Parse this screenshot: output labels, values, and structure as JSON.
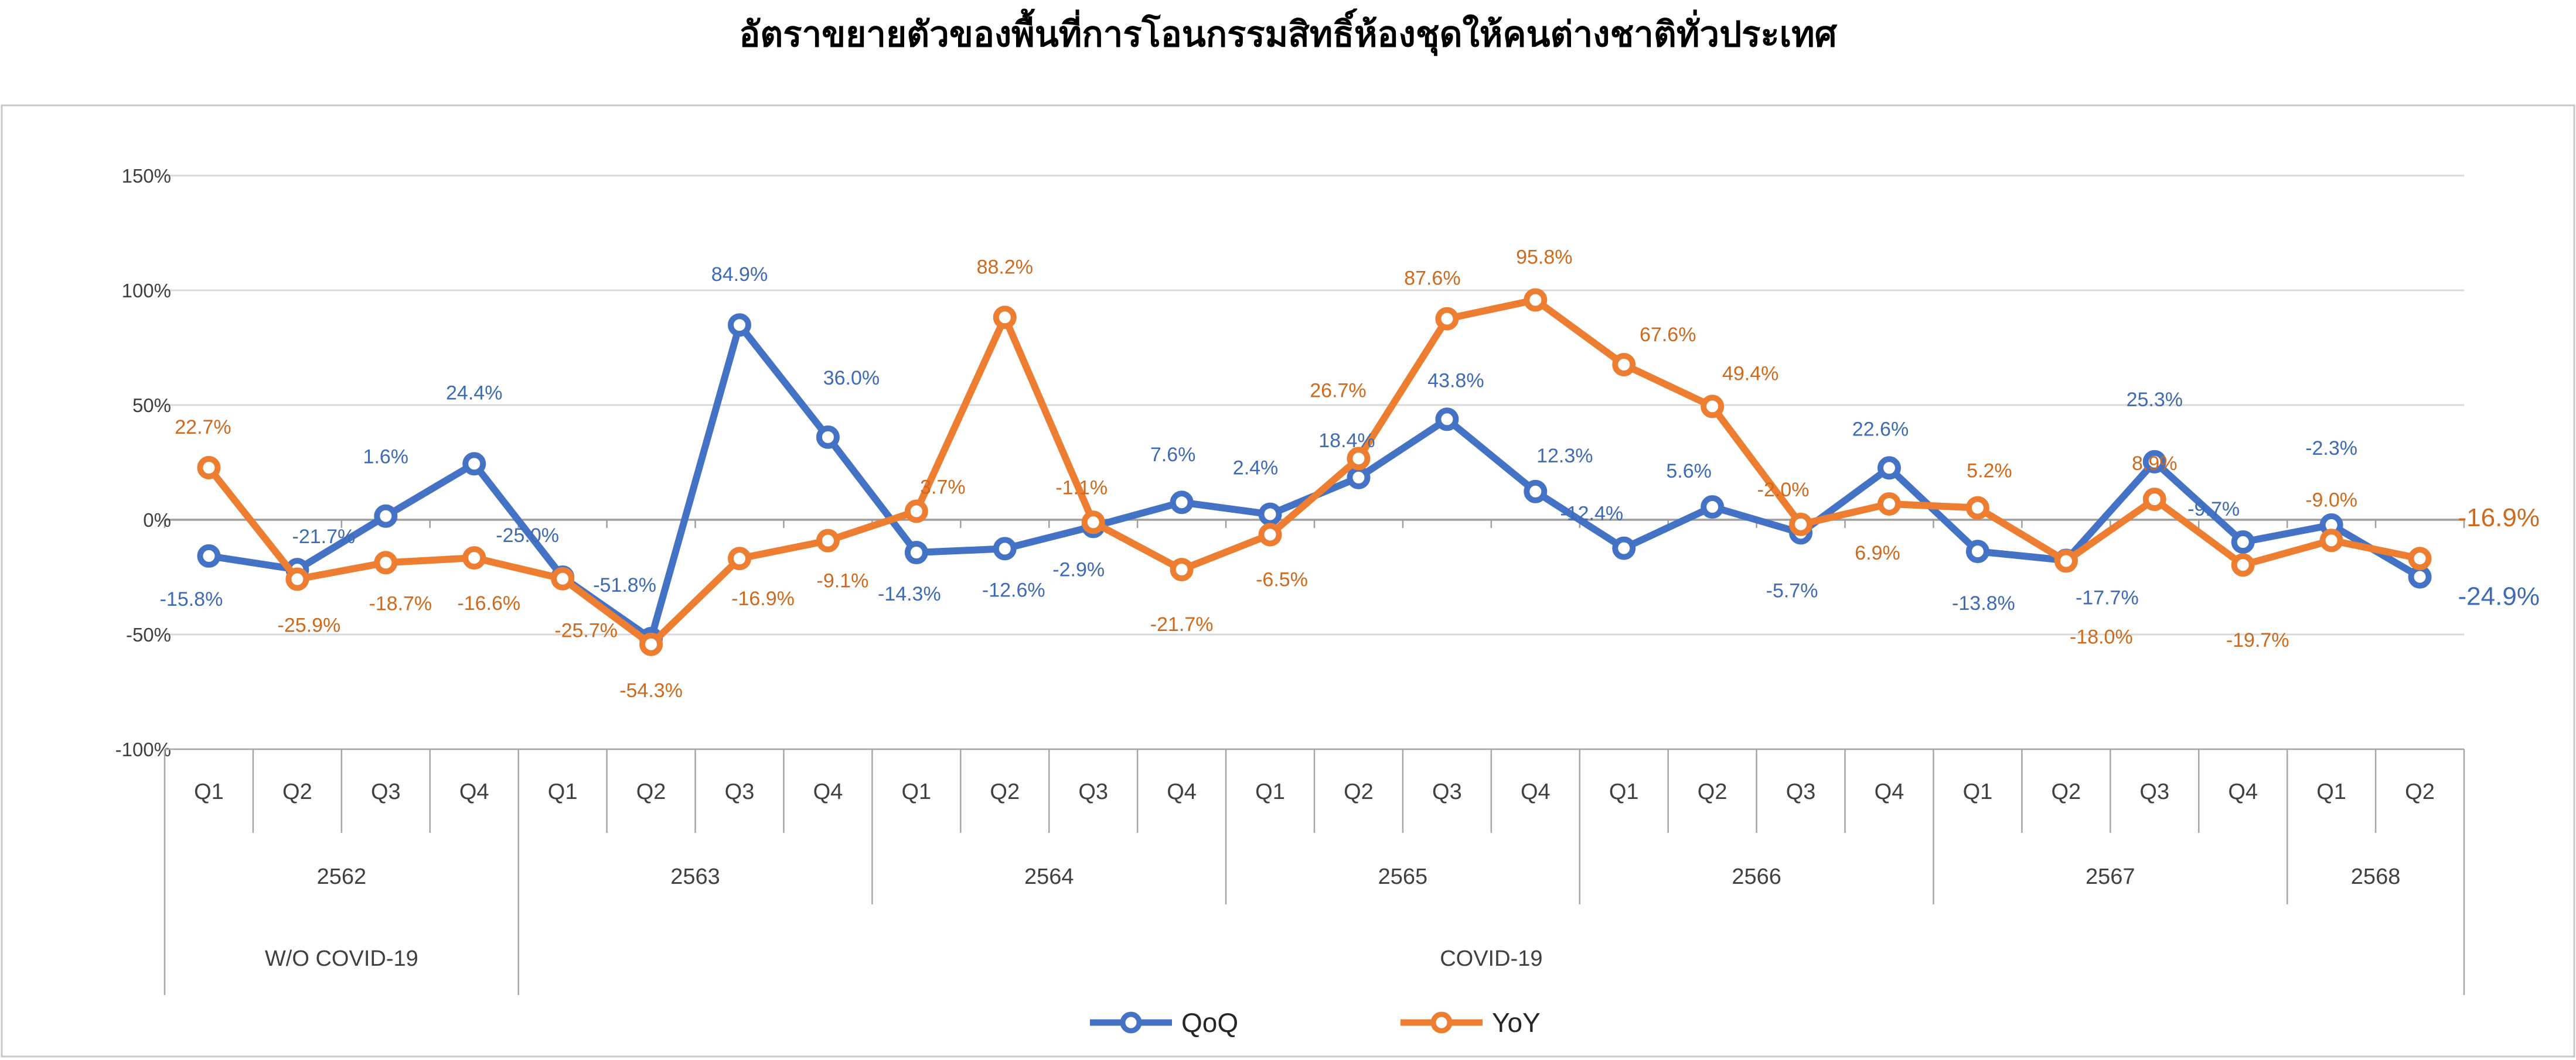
{
  "title": "อัตราขยายตัวของพื้นที่การโอนกรรมสิทธิ์ห้องชุดให้คนต่างชาติทั่วประเทศ",
  "y_axis": {
    "tick_labels": [
      "150%",
      "100%",
      "50%",
      "0%",
      "-50%",
      "-100%"
    ],
    "tick_values": [
      150,
      100,
      50,
      0,
      -50,
      -100
    ]
  },
  "x_axis": {
    "quarter_labels": [
      "Q1",
      "Q2",
      "Q3",
      "Q4",
      "Q1",
      "Q2",
      "Q3",
      "Q4",
      "Q1",
      "Q2",
      "Q3",
      "Q4",
      "Q1",
      "Q2",
      "Q3",
      "Q4",
      "Q1",
      "Q2",
      "Q3",
      "Q4",
      "Q1",
      "Q2",
      "Q3",
      "Q4",
      "Q1",
      "Q2"
    ],
    "year_groups": [
      {
        "label": "2562",
        "quarters": 4
      },
      {
        "label": "2563",
        "quarters": 4
      },
      {
        "label": "2564",
        "quarters": 4
      },
      {
        "label": "2565",
        "quarters": 4
      },
      {
        "label": "2566",
        "quarters": 4
      },
      {
        "label": "2567",
        "quarters": 4
      },
      {
        "label": "2568",
        "quarters": 2
      }
    ],
    "period_groups": [
      {
        "label": "W/O COVID-19",
        "quarters": 4
      },
      {
        "label": "COVID-19",
        "quarters": 22
      }
    ]
  },
  "chart_data": {
    "type": "line",
    "title": "อัตราขยายตัวของพื้นที่การโอนกรรมสิทธิ์ห้องชุดให้คนต่างชาติทั่วประเทศ",
    "categories": [
      "2562 Q1",
      "2562 Q2",
      "2562 Q3",
      "2562 Q4",
      "2563 Q1",
      "2563 Q2",
      "2563 Q3",
      "2563 Q4",
      "2564 Q1",
      "2564 Q2",
      "2564 Q3",
      "2564 Q4",
      "2565 Q1",
      "2565 Q2",
      "2565 Q3",
      "2565 Q4",
      "2566 Q1",
      "2566 Q2",
      "2566 Q3",
      "2566 Q4",
      "2567 Q1",
      "2567 Q2",
      "2567 Q3",
      "2567 Q4",
      "2568 Q1",
      "2568 Q2"
    ],
    "series": [
      {
        "name": "QoQ",
        "color": "#4472C4",
        "label_color": "#3E6BB3",
        "values": [
          -15.8,
          -21.7,
          1.6,
          24.4,
          -25.0,
          -51.8,
          84.9,
          36.0,
          -14.3,
          -12.6,
          -2.9,
          7.6,
          2.4,
          18.4,
          43.8,
          12.3,
          -12.4,
          5.6,
          -5.7,
          22.6,
          -13.8,
          -17.7,
          25.3,
          -9.7,
          -2.3,
          -24.9
        ]
      },
      {
        "name": "YoY",
        "color": "#ED7D31",
        "label_color": "#CE6A1E",
        "values": [
          22.7,
          -25.9,
          -18.7,
          -16.6,
          -25.7,
          -54.3,
          -16.9,
          -9.1,
          3.7,
          88.2,
          -1.1,
          -21.7,
          -6.5,
          26.7,
          87.6,
          95.8,
          67.6,
          49.4,
          -2.0,
          6.9,
          5.2,
          -18.0,
          8.9,
          -19.7,
          -9.0,
          -16.9
        ]
      }
    ],
    "ylim": [
      -100,
      150
    ],
    "ytick_step": 50,
    "grid": true,
    "legend_position": "bottom-center",
    "point_labels": "every point labeled with value, one decimal, percent"
  }
}
